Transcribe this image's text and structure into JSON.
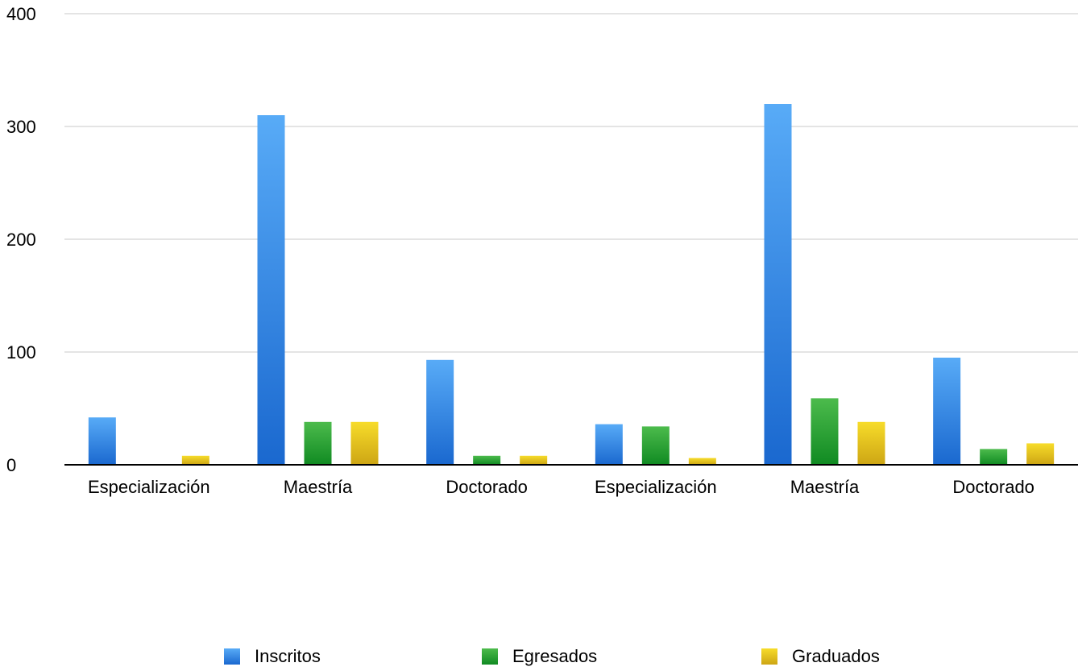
{
  "chart_data": {
    "type": "bar",
    "title": "",
    "xlabel": "",
    "ylabel": "",
    "ylim": [
      0,
      400
    ],
    "yticks": [
      0,
      100,
      200,
      300,
      400
    ],
    "grid": true,
    "legend_position": "bottom",
    "categories": [
      "Especialización",
      "Maestría",
      "Doctorado",
      "Especialización",
      "Maestría",
      "Doctorado"
    ],
    "series": [
      {
        "name": "Inscritos",
        "values": [
          42,
          310,
          93,
          36,
          320,
          95
        ],
        "color_top": "#58abf7",
        "color_bottom": "#1a68cf"
      },
      {
        "name": "Egresados",
        "values": [
          0,
          38,
          8,
          34,
          59,
          14
        ],
        "color_top": "#4cbb4c",
        "color_bottom": "#108a22"
      },
      {
        "name": "Graduados",
        "values": [
          8,
          38,
          8,
          6,
          38,
          19
        ],
        "color_top": "#f7dc2a",
        "color_bottom": "#cda514"
      }
    ]
  }
}
